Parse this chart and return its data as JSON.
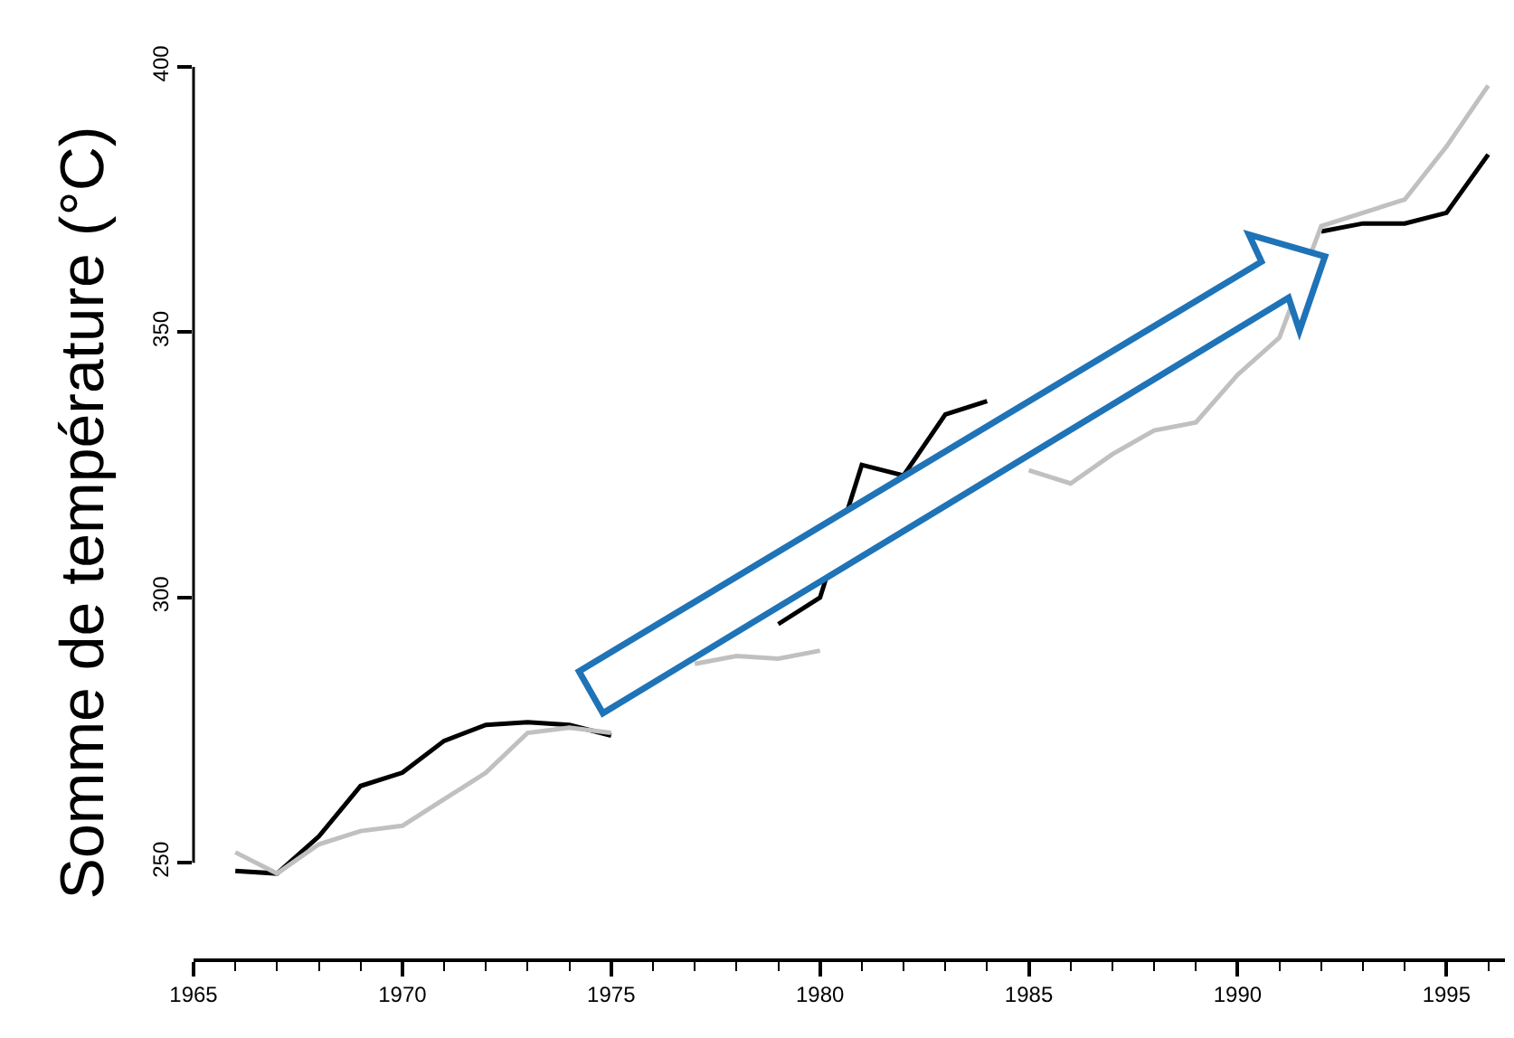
{
  "chart_data": {
    "type": "line",
    "ylabel": "Somme de température (°C)",
    "x": [
      1966,
      1967,
      1968,
      1969,
      1970,
      1971,
      1972,
      1973,
      1974,
      1975,
      1976,
      1977,
      1978,
      1979,
      1980,
      1981,
      1982,
      1983,
      1984,
      1985,
      1986,
      1987,
      1988,
      1989,
      1990,
      1991,
      1992,
      1993,
      1994,
      1995,
      1996
    ],
    "series": [
      {
        "color": "#000000",
        "values": [
          248.5,
          248,
          255,
          264.5,
          267,
          273,
          276,
          276.5,
          276,
          274,
          null,
          null,
          null,
          295,
          300,
          325,
          323,
          334.5,
          337,
          null,
          null,
          null,
          null,
          null,
          null,
          null,
          369,
          370.5,
          370.5,
          372.5,
          383.5
        ]
      },
      {
        "color": "#c0c0c0",
        "values": [
          252,
          248,
          253.5,
          256,
          257,
          262,
          267,
          274.5,
          275.5,
          274.5,
          null,
          287.5,
          289,
          288.5,
          290,
          null,
          null,
          null,
          null,
          324,
          321.5,
          327,
          331.5,
          333,
          342,
          349,
          370,
          372.5,
          375,
          385,
          396.5
        ]
      }
    ],
    "xlim": [
      1965,
      1996.4
    ],
    "xticks": [
      1965,
      {
        "value": 1966,
        "label": null
      },
      {
        "value": 1967,
        "label": null
      },
      {
        "value": 1968,
        "label": null
      },
      {
        "value": 1969,
        "label": null
      },
      1970,
      {
        "value": 1971,
        "label": null
      },
      {
        "value": 1972,
        "label": null
      },
      {
        "value": 1973,
        "label": null
      },
      {
        "value": 1974,
        "label": null
      },
      1975,
      {
        "value": 1976,
        "label": null
      },
      {
        "value": 1977,
        "label": null
      },
      {
        "value": 1978,
        "label": null
      },
      {
        "value": 1979,
        "label": null
      },
      1980,
      {
        "value": 1981,
        "label": null
      },
      {
        "value": 1982,
        "label": null
      },
      {
        "value": 1983,
        "label": null
      },
      {
        "value": 1984,
        "label": null
      },
      1985,
      {
        "value": 1986,
        "label": null
      },
      {
        "value": 1987,
        "label": null
      },
      {
        "value": 1988,
        "label": null
      },
      {
        "value": 1989,
        "label": null
      },
      1990,
      {
        "value": 1991,
        "label": null
      },
      {
        "value": 1992,
        "label": null
      },
      {
        "value": 1993,
        "label": null
      },
      {
        "value": 1994,
        "label": null
      },
      1995,
      {
        "value": 1996,
        "label": null
      }
    ],
    "ylim": [
      232,
      400
    ],
    "yticks": [
      250,
      300,
      350,
      400
    ],
    "marker": "none",
    "line_style": "solid"
  }
}
